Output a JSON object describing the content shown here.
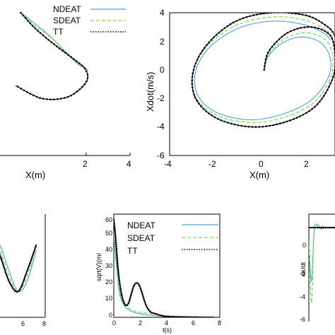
{
  "colors": {
    "ndeat": "#4aa3d9",
    "sdeat": "#7ed957",
    "tt": "#000000",
    "axis": "#000000"
  },
  "legend": {
    "entries": [
      "NDEAT",
      "SDEAT",
      "TT"
    ]
  },
  "chart_data": [
    {
      "type": "line",
      "panel": "top-left",
      "xlabel": "X(m)",
      "ylabel": "",
      "xticks": [
        "2",
        "4"
      ],
      "xlim": [
        -1,
        4
      ],
      "ylim": [
        -6,
        4
      ],
      "series": [
        {
          "name": "NDEAT",
          "x": [
            -0.2,
            0.3,
            0.9,
            1.5,
            2.0,
            2.4
          ],
          "y": [
            4.0,
            3.3,
            2.4,
            1.3,
            0.4,
            0.0
          ]
        },
        {
          "name": "SDEAT",
          "x": [
            -0.2,
            0.35,
            1.0,
            1.6,
            2.1,
            2.4
          ],
          "y": [
            4.0,
            3.1,
            2.2,
            1.1,
            0.3,
            0.0
          ]
        },
        {
          "name": "TT",
          "x": [
            -0.2,
            0.3,
            1.0,
            1.8,
            2.3,
            2.3,
            1.6,
            0.6,
            -0.4
          ],
          "y": [
            4.0,
            3.0,
            1.9,
            0.8,
            0.0,
            -0.9,
            -1.9,
            -2.0,
            -1.1
          ]
        }
      ]
    },
    {
      "type": "line",
      "panel": "top-right",
      "xlabel": "X(m)",
      "ylabel": "Xdot(m/s)",
      "xticks": [
        "-4",
        "-2",
        "0",
        "2"
      ],
      "yticks": [
        "4",
        "2",
        "0",
        "-2",
        "-4",
        "-6"
      ],
      "xlim": [
        -4,
        3
      ],
      "ylim": [
        -6,
        4
      ],
      "series": [
        {
          "name": "NDEAT",
          "x": [
            0,
            0.2,
            0.8,
            1.6,
            2.4,
            2.8,
            2.7,
            2.0,
            0.8,
            -0.6,
            -2.0,
            -2.8,
            -2.9,
            -2.3,
            -1.1,
            0.3,
            1.6,
            2.5,
            2.8
          ],
          "y": [
            0,
            1.0,
            1.9,
            2.3,
            1.9,
            0.8,
            -0.6,
            -2.1,
            -3.1,
            -3.5,
            -3.0,
            -1.8,
            -0.1,
            1.6,
            2.9,
            3.4,
            3.2,
            2.6,
            2.1
          ]
        },
        {
          "name": "SDEAT",
          "x": [
            0,
            0.2,
            0.9,
            1.8,
            2.6,
            2.9,
            2.8,
            2.1,
            0.9,
            -0.5,
            -2.0,
            -2.9,
            -3.0,
            -2.4,
            -1.2,
            0.3,
            1.7,
            2.6,
            2.9
          ],
          "y": [
            0,
            1.1,
            2.2,
            2.6,
            2.1,
            0.9,
            -0.6,
            -2.3,
            -3.3,
            -3.7,
            -3.2,
            -1.9,
            -0.1,
            1.7,
            3.1,
            3.7,
            3.5,
            2.8,
            2.2
          ]
        },
        {
          "name": "TT",
          "x": [
            0,
            0.2,
            1.0,
            2.0,
            2.8,
            3.0,
            2.9,
            2.2,
            1.0,
            -0.5,
            -2.0,
            -2.9,
            -3.0,
            -2.4,
            -1.2,
            0.3,
            1.8,
            2.7,
            3.0
          ],
          "y": [
            0,
            1.3,
            2.6,
            3.0,
            2.4,
            1.0,
            -0.6,
            -2.5,
            -3.6,
            -4.0,
            -3.4,
            -2.0,
            -0.1,
            1.8,
            3.4,
            4.0,
            3.8,
            3.0,
            2.4
          ]
        }
      ]
    },
    {
      "type": "line",
      "panel": "bottom-left",
      "xticks": [
        "6",
        "8"
      ],
      "xlim": [
        4,
        8
      ],
      "ylim": [
        -1,
        1
      ],
      "series": [
        {
          "name": "NDEAT",
          "x": [
            4.0,
            4.4,
            4.8,
            5.2,
            5.6,
            6.0,
            6.4,
            6.8,
            7.2,
            7.6
          ],
          "y": [
            -0.2,
            -0.6,
            -0.3,
            0.3,
            0.6,
            0.4,
            -0.1,
            -0.5,
            -0.3,
            0.3
          ]
        },
        {
          "name": "SDEAT",
          "x": [
            4.0,
            4.4,
            4.8,
            5.2,
            5.6,
            6.0,
            6.4,
            6.8,
            7.2,
            7.6
          ],
          "y": [
            -0.1,
            -0.5,
            -0.2,
            0.4,
            0.6,
            0.3,
            -0.2,
            -0.5,
            -0.2,
            0.3
          ]
        },
        {
          "name": "TT",
          "x": [
            4.0,
            4.4,
            4.8,
            5.2,
            5.6,
            6.0,
            6.4,
            6.8,
            7.2,
            7.6
          ],
          "y": [
            0.0,
            -0.5,
            -0.1,
            0.5,
            0.6,
            0.2,
            -0.3,
            -0.5,
            -0.1,
            0.4
          ]
        }
      ]
    },
    {
      "type": "line",
      "panel": "bottom-middle",
      "xlabel": "t(s)",
      "ylabel": "sqrt(V)(m/",
      "xticks": [
        "0",
        "2",
        "4",
        "6",
        "8"
      ],
      "yticks": [
        "60",
        "50",
        "40",
        "30",
        "20",
        "10",
        "0"
      ],
      "xlim": [
        0,
        8
      ],
      "ylim": [
        0,
        60
      ],
      "series": [
        {
          "name": "NDEAT",
          "x": [
            0,
            0.2,
            0.4,
            0.7,
            1.0,
            1.5,
            2.0,
            3.0,
            4.0,
            5.0,
            6.0,
            7.0,
            7.6
          ],
          "y": [
            48,
            30,
            15,
            8,
            5,
            3,
            2,
            1,
            0.5,
            0.3,
            0.2,
            0.1,
            0
          ]
        },
        {
          "name": "SDEAT",
          "x": [
            0,
            0.2,
            0.4,
            0.7,
            1.0,
            1.5,
            2.0,
            3.0,
            4.0,
            5.0,
            6.0,
            7.0,
            7.6
          ],
          "y": [
            50,
            32,
            17,
            9,
            6,
            4,
            3,
            2,
            1,
            0.6,
            0.4,
            0.2,
            0.1
          ]
        },
        {
          "name": "TT",
          "x": [
            0,
            0.15,
            0.3,
            0.5,
            0.7,
            0.9,
            1.1,
            1.3,
            1.5,
            1.7,
            1.9,
            2.1,
            2.3,
            2.5,
            2.8,
            3.2,
            3.6,
            4.0,
            5.0,
            6.0,
            7.0,
            7.6
          ],
          "y": [
            57,
            45,
            30,
            17,
            10,
            7,
            8,
            13,
            18,
            20,
            19,
            15,
            10,
            6,
            3,
            2,
            1,
            0.5,
            0.2,
            0.1,
            0,
            0
          ]
        }
      ]
    },
    {
      "type": "line",
      "panel": "bottom-right",
      "ylabel": "dε/dt",
      "yticks": [
        "0",
        "-2",
        "-4",
        "-6"
      ],
      "xlim": [
        0,
        8
      ],
      "ylim": [
        -6,
        2
      ],
      "series": [
        {
          "name": "NDEAT",
          "x": [
            0,
            0.2,
            0.4,
            0.6,
            0.9,
            1.2,
            1.6,
            2,
            4,
            8
          ],
          "y": [
            0.0,
            -3.0,
            0.8,
            1.2,
            0.9,
            1.0,
            1.0,
            1.0,
            1.0,
            1.0
          ]
        },
        {
          "name": "SDEAT",
          "x": [
            0,
            0.2,
            0.4,
            0.6,
            0.9,
            1.2,
            1.6,
            2,
            4,
            8
          ],
          "y": [
            0.0,
            -4.6,
            0.6,
            1.1,
            1.2,
            1.0,
            1.0,
            1.0,
            1.0,
            1.0
          ]
        },
        {
          "name": "TT",
          "x": [
            0,
            0.2,
            0.4,
            0.6,
            1.0,
            2,
            4,
            8
          ],
          "y": [
            1.0,
            1.0,
            1.0,
            1.0,
            1.0,
            1.0,
            1.0,
            1.0
          ]
        }
      ]
    }
  ]
}
